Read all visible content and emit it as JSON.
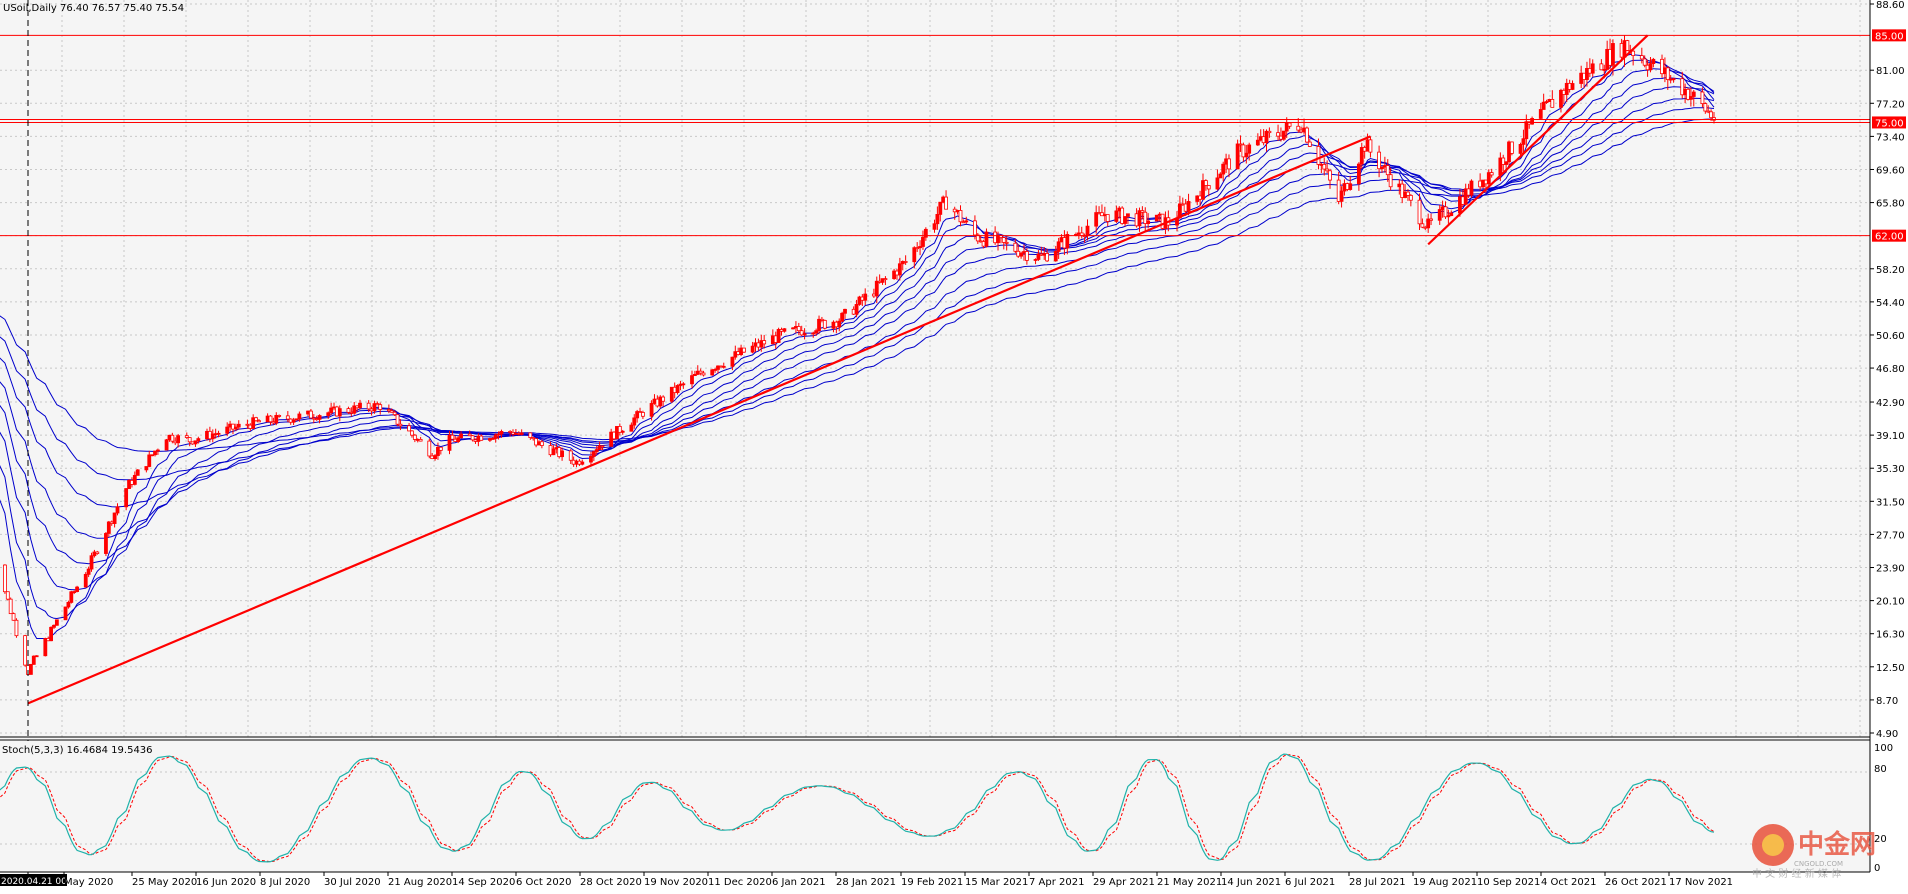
{
  "header": {
    "main_title": "USoil,Daily  76.40 76.57 75.40 75.54",
    "stoch_title": "Stoch(5,3,3) 16.4684 19.5436"
  },
  "watermark": {
    "cn": "中金网",
    "en": "CNGOLD.COM",
    "tagline": "中 文 财 经 新 媒 体"
  },
  "colors": {
    "background": "#f5f5f5",
    "grid": "#c8c8c8",
    "candle_up": "#ff0000",
    "candle_down": "#ff0000",
    "ma": "#0000cc",
    "hline": "#ff0000",
    "trend": "#ff0000",
    "stoch_main": "#20b2aa",
    "stoch_signal": "#ff0000"
  },
  "chart_data": {
    "type": "candlestick",
    "title": "USoil,Daily  76.40 76.57 75.40 75.54",
    "yaxis_ticks": [
      "88.60",
      "85.00",
      "81.00",
      "77.20",
      "75.00",
      "73.40",
      "69.60",
      "65.80",
      "62.00",
      "58.20",
      "54.40",
      "50.60",
      "46.80",
      "42.90",
      "39.10",
      "35.30",
      "31.50",
      "27.70",
      "23.90",
      "20.10",
      "16.30",
      "12.50",
      "8.70",
      "4.90"
    ],
    "ylim": [
      4.9,
      88.6
    ],
    "xaxis_labels": [
      "2020.04.21 00:00",
      "May 2020",
      "25 May 2020",
      "16 Jun 2020",
      "8 Jul 2020",
      "30 Jul 2020",
      "21 Aug 2020",
      "14 Sep 2020",
      "6 Oct 2020",
      "28 Oct 2020",
      "19 Nov 2020",
      "11 Dec 2020",
      "6 Jan 2021",
      "28 Jan 2021",
      "19 Feb 2021",
      "15 Mar 2021",
      "7 Apr 2021",
      "29 Apr 2021",
      "21 May 2021",
      "14 Jun 2021",
      "6 Jul 2021",
      "28 Jul 2021",
      "19 Aug 2021",
      "10 Sep 2021",
      "4 Oct 2021",
      "26 Oct 2021",
      "17 Nov 2021"
    ],
    "horizontal_levels": [
      {
        "value": 85.0,
        "label": "85.00"
      },
      {
        "value": 75.0,
        "label": "75.00"
      },
      {
        "value": 62.0,
        "label": "62.00"
      }
    ],
    "trendlines": [
      {
        "from": [
          "2020.04.21",
          8.3
        ],
        "to": [
          "2021.07.30",
          73.4
        ]
      },
      {
        "from": [
          "2021.08.19",
          61.0
        ],
        "to": [
          "2021.11.03",
          85.0
        ]
      }
    ],
    "close_path": [
      [
        "2020.04.08",
        27.0
      ],
      [
        "2020.04.21",
        12.0
      ],
      [
        "2020.05.12",
        24.0
      ],
      [
        "2020.05.25",
        33.0
      ],
      [
        "2020.06.08",
        39.0
      ],
      [
        "2020.06.16",
        38.5
      ],
      [
        "2020.07.08",
        40.5
      ],
      [
        "2020.07.30",
        41.5
      ],
      [
        "2020.08.21",
        42.5
      ],
      [
        "2020.09.08",
        37.0
      ],
      [
        "2020.09.14",
        38.5
      ],
      [
        "2020.10.06",
        39.5
      ],
      [
        "2020.10.28",
        36.0
      ],
      [
        "2020.11.19",
        41.5
      ],
      [
        "2020.12.11",
        46.5
      ],
      [
        "2021.01.06",
        50.5
      ],
      [
        "2021.01.28",
        52.5
      ],
      [
        "2021.02.19",
        59.0
      ],
      [
        "2021.03.05",
        66.0
      ],
      [
        "2021.03.15",
        62.0
      ],
      [
        "2021.04.07",
        59.5
      ],
      [
        "2021.04.29",
        64.5
      ],
      [
        "2021.05.21",
        63.5
      ],
      [
        "2021.06.14",
        71.5
      ],
      [
        "2021.07.06",
        75.0
      ],
      [
        "2021.07.19",
        66.0
      ],
      [
        "2021.07.28",
        72.5
      ],
      [
        "2021.08.19",
        63.0
      ],
      [
        "2021.09.10",
        69.5
      ],
      [
        "2021.10.04",
        78.5
      ],
      [
        "2021.10.26",
        84.0
      ],
      [
        "2021.11.17",
        78.5
      ],
      [
        "2021.11.26",
        75.5
      ]
    ],
    "stochastic": {
      "name": "Stoch(5,3,3)",
      "main": 16.4684,
      "signal": 19.5436,
      "levels": [
        100,
        80,
        20,
        0
      ],
      "ylim": [
        0,
        100
      ]
    },
    "grid": true
  }
}
